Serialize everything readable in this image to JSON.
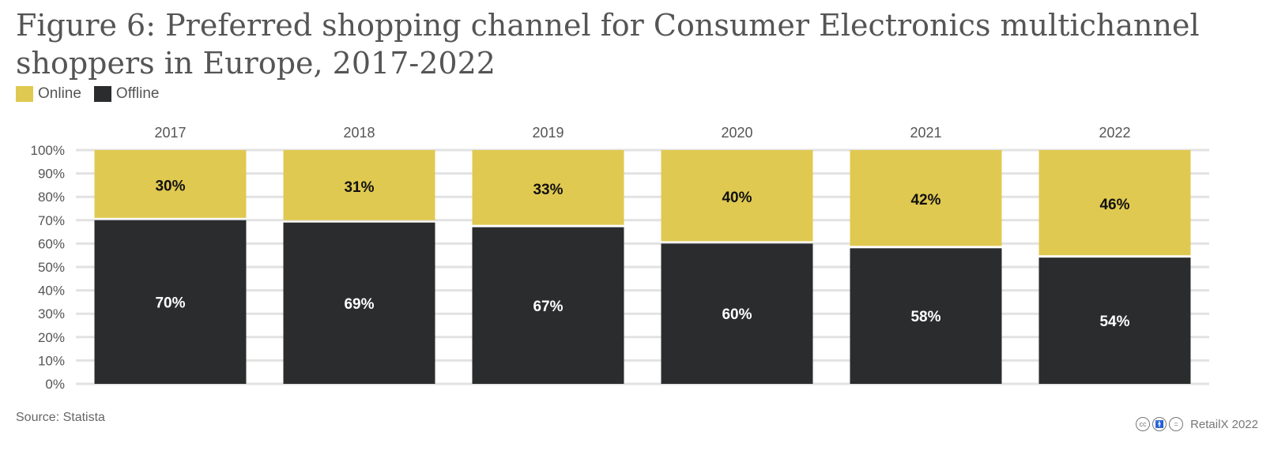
{
  "title": "Figure 6: Preferred shopping channel for Consumer Electronics multichannel shoppers in Europe, 2017-2022",
  "legend": [
    {
      "label": "Online",
      "color": "#E0C950"
    },
    {
      "label": "Offline",
      "color": "#2A2C2D"
    }
  ],
  "source": "Source: Statista",
  "credit": "RetailX 2022",
  "credit_icons": [
    "cc-icon",
    "by-icon",
    "nd-icon"
  ],
  "chart_data": {
    "type": "bar",
    "stacked": true,
    "categories": [
      "2017",
      "2018",
      "2019",
      "2020",
      "2021",
      "2022"
    ],
    "series": [
      {
        "name": "Offline",
        "color": "#2A2C2D",
        "values": [
          70,
          69,
          67,
          60,
          58,
          54
        ],
        "labels": [
          "70%",
          "69%",
          "67%",
          "60%",
          "58%",
          "54%"
        ]
      },
      {
        "name": "Online",
        "color": "#E0C950",
        "values": [
          30,
          31,
          33,
          40,
          42,
          46
        ],
        "labels": [
          "30%",
          "31%",
          "33%",
          "40%",
          "42%",
          "46%"
        ]
      }
    ],
    "ylim": [
      0,
      100
    ],
    "yticks": [
      "0%",
      "10%",
      "20%",
      "30%",
      "40%",
      "50%",
      "60%",
      "70%",
      "80%",
      "90%",
      "100%"
    ],
    "category_labels_position": "top",
    "grid": true
  }
}
